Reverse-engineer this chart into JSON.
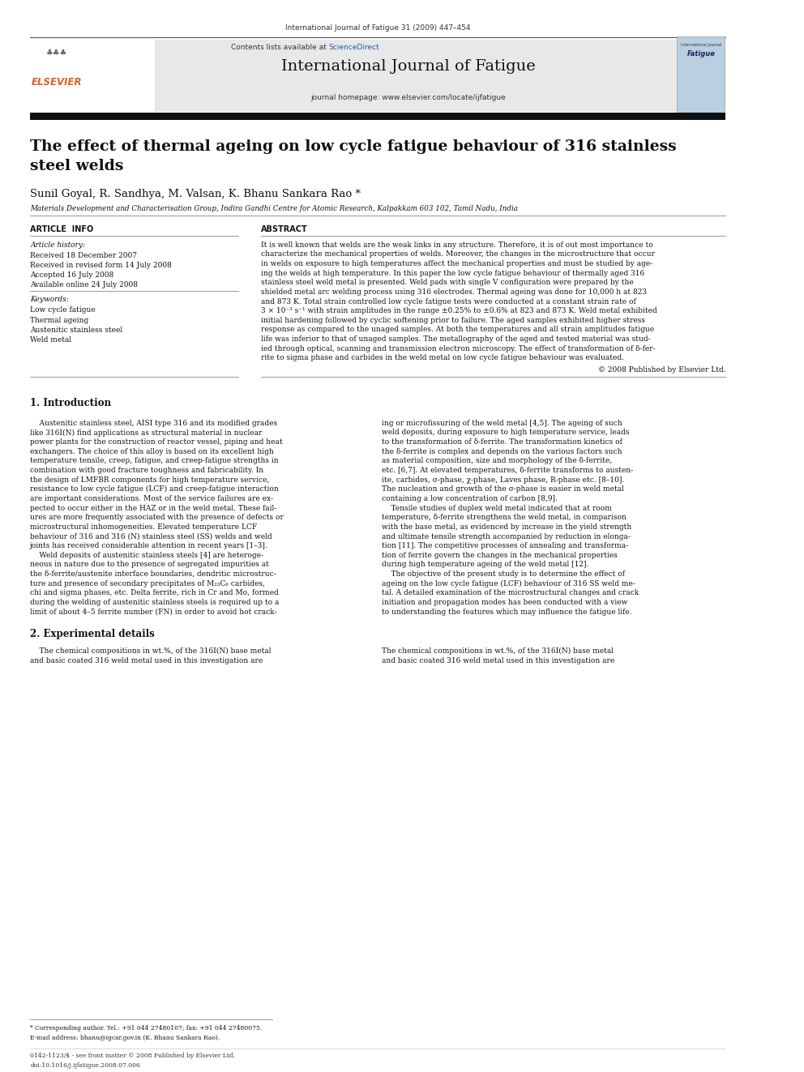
{
  "page_width": 9.92,
  "page_height": 13.23,
  "background_color": "#ffffff",
  "journal_ref": "International Journal of Fatigue 31 (2009) 447–454",
  "sciencedirect_color": "#2060a0",
  "journal_title": "International Journal of Fatigue",
  "header_bg": "#e8e8e8",
  "orange_bar_color": "#e06020",
  "black_bar_color": "#101010",
  "paper_title": "The effect of thermal ageing on low cycle fatigue behaviour of 316 stainless\nsteel welds",
  "authors": "Sunil Goyal, R. Sandhya, M. Valsan, K. Bhanu Sankara Rao *",
  "affiliation": "Materials Development and Characterisation Group, Indira Gandhi Centre for Atomic Research, Kalpakkam 603 102, Tamil Nadu, India",
  "article_info_header": "ARTICLE  INFO",
  "abstract_header": "ABSTRACT",
  "article_history_label": "Article history:",
  "received1": "Received 18 December 2007",
  "received2": "Received in revised form 14 July 2008",
  "accepted": "Accepted 16 July 2008",
  "available": "Available online 24 July 2008",
  "keywords_label": "Keywords:",
  "keywords": [
    "Low cycle fatigue",
    "Thermal ageing",
    "Austenitic stainless steel",
    "Weld metal"
  ],
  "abstract_lines": [
    "It is well known that welds are the weak links in any structure. Therefore, it is of out most importance to",
    "characterize the mechanical properties of welds. Moreover, the changes in the microstructure that occur",
    "in welds on exposure to high temperatures affect the mechanical properties and must be studied by age-",
    "ing the welds at high temperature. In this paper the low cycle fatigue behaviour of thermally aged 316",
    "stainless steel weld metal is presented. Weld pads with single V configuration were prepared by the",
    "shielded metal arc welding process using 316 electrodes. Thermal ageing was done for 10,000 h at 823",
    "and 873 K. Total strain controlled low cycle fatigue tests were conducted at a constant strain rate of",
    "3 × 10⁻³ s⁻¹ with strain amplitudes in the range ±0.25% to ±0.6% at 823 and 873 K. Weld metal exhibited",
    "initial hardening followed by cyclic softening prior to failure. The aged samples exhibited higher stress",
    "response as compared to the unaged samples. At both the temperatures and all strain amplitudes fatigue",
    "life was inferior to that of unaged samples. The metallography of the aged and tested material was stud-",
    "ied through optical, scanning and transmission electron microscopy. The effect of transformation of δ-fer-",
    "rite to sigma phase and carbides in the weld metal on low cycle fatigue behaviour was evaluated."
  ],
  "copyright_line": "© 2008 Published by Elsevier Ltd.",
  "section1_title": "1. Introduction",
  "intro1_lines": [
    "    Austenitic stainless steel, AISI type 316 and its modified grades",
    "like 316I(N) find applications as structural material in nuclear",
    "power plants for the construction of reactor vessel, piping and heat",
    "exchangers. The choice of this alloy is based on its excellent high",
    "temperature tensile, creep, fatigue, and creep-fatigue strengths in",
    "combination with good fracture toughness and fabricability. In",
    "the design of LMFBR components for high temperature service,",
    "resistance to low cycle fatigue (LCF) and creep-fatigue interaction",
    "are important considerations. Most of the service failures are ex-",
    "pected to occur either in the HAZ or in the weld metal. These fail-",
    "ures are more frequently associated with the presence of defects or",
    "microstructural inhomogeneities. Elevated temperature LCF",
    "behaviour of 316 and 316 (N) stainless steel (SS) welds and weld",
    "joints has received considerable attention in recent years [1–3].",
    "    Weld deposits of austenitic stainless steels [4] are heteroge-",
    "neous in nature due to the presence of segregated impurities at",
    "the δ-ferrite/austenite interface boundaries, dendritic microstruc-",
    "ture and presence of secondary precipitates of M₂₃C₆ carbides,",
    "chi and sigma phases, etc. Delta ferrite, rich in Cr and Mo, formed",
    "during the welding of austenitic stainless steels is required up to a",
    "limit of about 4–5 ferrite number (FN) in order to avoid hot crack-"
  ],
  "intro2_lines": [
    "ing or microfissuring of the weld metal [4,5]. The ageing of such",
    "weld deposits, during exposure to high temperature service, leads",
    "to the transformation of δ-ferrite. The transformation kinetics of",
    "the δ-ferrite is complex and depends on the various factors such",
    "as material composition, size and morphology of the δ-ferrite,",
    "etc. [6,7]. At elevated temperatures, δ-ferrite transforms to austen-",
    "ite, carbides, σ-phase, χ-phase, Laves phase, R-phase etc. [8–10].",
    "The nucleation and growth of the σ-phase is easier in weld metal",
    "containing a low concentration of carbon [8,9].",
    "    Tensile studies of duplex weld metal indicated that at room",
    "temperature, δ-ferrite strengthens the weld metal, in comparison",
    "with the base metal, as evidenced by increase in the yield strength",
    "and ultimate tensile strength accompanied by reduction in elonga-",
    "tion [11]. The competitive processes of annealing and transforma-",
    "tion of ferrite govern the changes in the mechanical properties",
    "during high temperature ageing of the weld metal [12].",
    "    The objective of the present study is to determine the effect of",
    "ageing on the low cycle fatigue (LCF) behaviour of 316 SS weld me-",
    "tal. A detailed examination of the microstructural changes and crack",
    "initiation and propagation modes has been conducted with a view",
    "to understanding the features which may influence the fatigue life."
  ],
  "section2_title": "2. Experimental details",
  "section2_col1_lines": [
    "    The chemical compositions in wt.%, of the 316I(N) base metal",
    "and basic coated 316 weld metal used in this investigation are"
  ],
  "section2_col2_lines": [
    "The chemical compositions in wt.%, of the 316I(N) base metal",
    "and basic coated 316 weld metal used in this investigation are"
  ],
  "footnote_star": "* Corresponding author. Tel.: +91 044 27480107; fax: +91 044 27480075.",
  "footnote_email": "E-mail address: bhanu@igcar.gov.in (K. Bhanu Sankara Rao).",
  "footer_left": "0142-1123/$ - see front matter © 2008 Published by Elsevier Ltd.",
  "footer_doi": "doi:10.1016/j.ijfatigue.2008.07.006"
}
